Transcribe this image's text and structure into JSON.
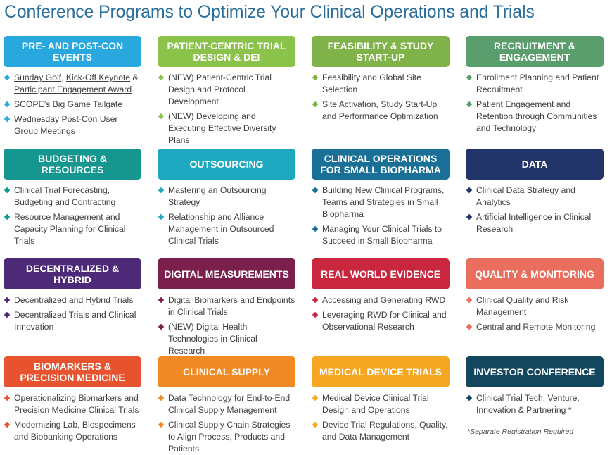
{
  "title": "Conference Programs to Optimize Your Clinical Operations and Trials",
  "tracks": [
    {
      "header": "PRE- AND POST-CON EVENTS",
      "color": "#29a8df",
      "bullet": "#29a8df",
      "items": [
        {
          "parts": [
            {
              "text": "Sunday Golf",
              "link": true
            },
            {
              "text": ", ",
              "link": false
            },
            {
              "text": "Kick-Off Keynote",
              "link": true
            },
            {
              "text": " & ",
              "link": false
            },
            {
              "text": "Participant Engagement Award",
              "link": true
            }
          ]
        },
        {
          "text": "SCOPE’s Big Game Tailgate"
        },
        {
          "text": "Wednesday Post-Con User Group Meetings"
        }
      ]
    },
    {
      "header": "PATIENT-CENTRIC TRIAL DESIGN & DEI",
      "color": "#8bc34a",
      "bullet": "#8bc34a",
      "items": [
        {
          "text": "(NEW) Patient-Centric Trial Design and Protocol Development"
        },
        {
          "text": "(NEW) Developing and Executing Effective Diversity Plans"
        }
      ]
    },
    {
      "header": "FEASIBILITY & STUDY START-UP",
      "color": "#80b24a",
      "bullet": "#80b24a",
      "items": [
        {
          "text": "Feasibility and Global Site Selection"
        },
        {
          "text": "Site Activation, Study Start-Up and Performance Optimization"
        }
      ]
    },
    {
      "header": "RECRUITMENT & ENGAGEMENT",
      "color": "#5a9e6e",
      "bullet": "#5a9e6e",
      "items": [
        {
          "text": "Enrollment Planning and Patient Recruitment"
        },
        {
          "text": "Patient Engagement and Retention through Communities and Technology"
        }
      ]
    },
    {
      "header": "BUDGETING & RESOURCES",
      "color": "#15978f",
      "bullet": "#15978f",
      "items": [
        {
          "text": "Clinical Trial Forecasting, Budgeting and Contracting"
        },
        {
          "text": "Resource Management and Capacity Planning for Clinical Trials"
        }
      ]
    },
    {
      "header": "OUTSOURCING",
      "color": "#1fa9c1",
      "bullet": "#1fa9c1",
      "items": [
        {
          "text": "Mastering an Outsourcing Strategy"
        },
        {
          "text": "Relationship and Alliance Management in Outsourced Clinical Trials"
        }
      ]
    },
    {
      "header": "CLINICAL OPERATIONS FOR SMALL BIOPHARMA",
      "color": "#1a6f96",
      "bullet": "#1a6f96",
      "items": [
        {
          "text": "Building New Clinical Programs, Teams and Strategies in Small Biopharma"
        },
        {
          "text": "Managing Your Clinical Trials to Succeed in Small Biopharma"
        }
      ]
    },
    {
      "header": "DATA",
      "color": "#22356b",
      "bullet": "#22356b",
      "items": [
        {
          "text": "Clinical Data Strategy and Analytics"
        },
        {
          "text": "Artificial Intelligence in Clinical Research"
        }
      ]
    },
    {
      "header": "DECENTRALIZED & HYBRID",
      "color": "#4d2a78",
      "bullet": "#4d2a78",
      "items": [
        {
          "text": "Decentralized and Hybrid Trials"
        },
        {
          "text": "Decentralized Trials and Clinical Innovation"
        }
      ]
    },
    {
      "header": "DIGITAL MEASUREMENTS",
      "color": "#7b1f4d",
      "bullet": "#7b1f4d",
      "items": [
        {
          "text": "Digital Biomarkers and Endpoints in Clinical Trials"
        },
        {
          "text": "(NEW) Digital Health Technologies in Clinical Research"
        }
      ]
    },
    {
      "header": "REAL WORLD EVIDENCE",
      "color": "#c9273d",
      "bullet": "#c9273d",
      "items": [
        {
          "text": "Accessing and Generating RWD"
        },
        {
          "text": "Leveraging RWD for Clinical and Observational Research"
        }
      ]
    },
    {
      "header": "QUALITY & MONITORING",
      "color": "#ea6e5d",
      "bullet": "#ea6e5d",
      "items": [
        {
          "text": "Clinical Quality and Risk Management"
        },
        {
          "text": "Central and Remote Monitoring"
        }
      ]
    },
    {
      "header": "BIOMARKERS & PRECISION MEDICINE",
      "color": "#e8532f",
      "bullet": "#e8532f",
      "items": [
        {
          "text": "Operationalizing Biomarkers and Precision Medicine Clinical Trials"
        },
        {
          "text": "Modernizing Lab, Biospecimens and Biobanking Operations"
        }
      ]
    },
    {
      "header": "CLINICAL SUPPLY",
      "color": "#f08a24",
      "bullet": "#f08a24",
      "items": [
        {
          "text": "Data Technology for End-to-End Clinical Supply Management"
        },
        {
          "text": "Clinical Supply Chain Strategies to Align Process, Products and Patients"
        }
      ]
    },
    {
      "header": "MEDICAL DEVICE TRIALS",
      "color": "#f5a623",
      "bullet": "#f5a623",
      "items": [
        {
          "text": "Medical Device Clinical Trial Design and Operations"
        },
        {
          "text": "Device Trial Regulations, Quality, and Data Management"
        }
      ]
    },
    {
      "header": "INVESTOR CONFERENCE",
      "color": "#12475d",
      "bullet": "#12475d",
      "items": [
        {
          "text": "Clinical Trial Tech: Venture, Innovation & Partnering *"
        }
      ],
      "footnote": "*Separate Registration Required"
    }
  ]
}
